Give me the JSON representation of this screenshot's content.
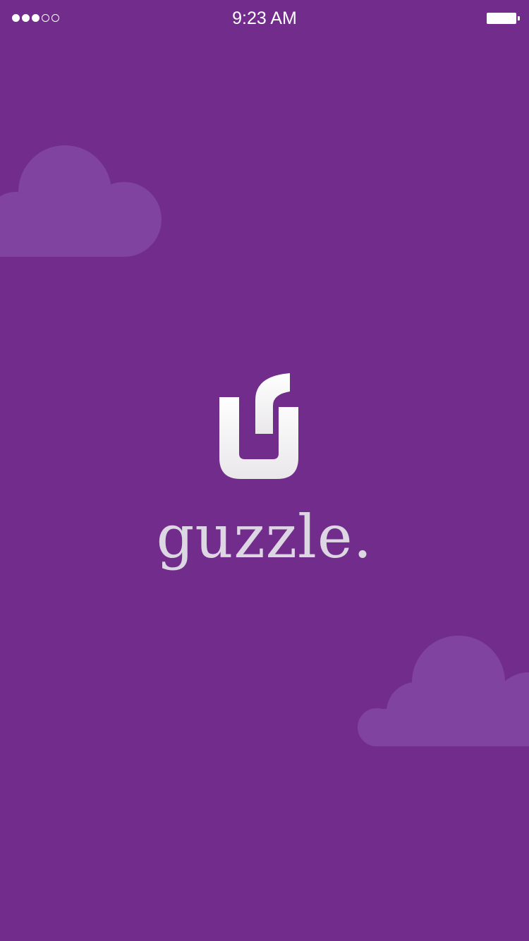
{
  "app": {
    "name": "guzzle."
  },
  "status_bar": {
    "time": "9:23 AM",
    "signal_bars_filled": 3,
    "signal_bars_total": 5
  },
  "colors": {
    "background": "#722d8c",
    "cloud": "#8043a0",
    "text_primary": "#ffffff",
    "wordmark": "#ddd6e3"
  },
  "icons": {
    "logo": "guzzle-logo-icon",
    "battery": "battery-icon",
    "signal": "signal-strength-icon",
    "cloud": "cloud-icon"
  }
}
